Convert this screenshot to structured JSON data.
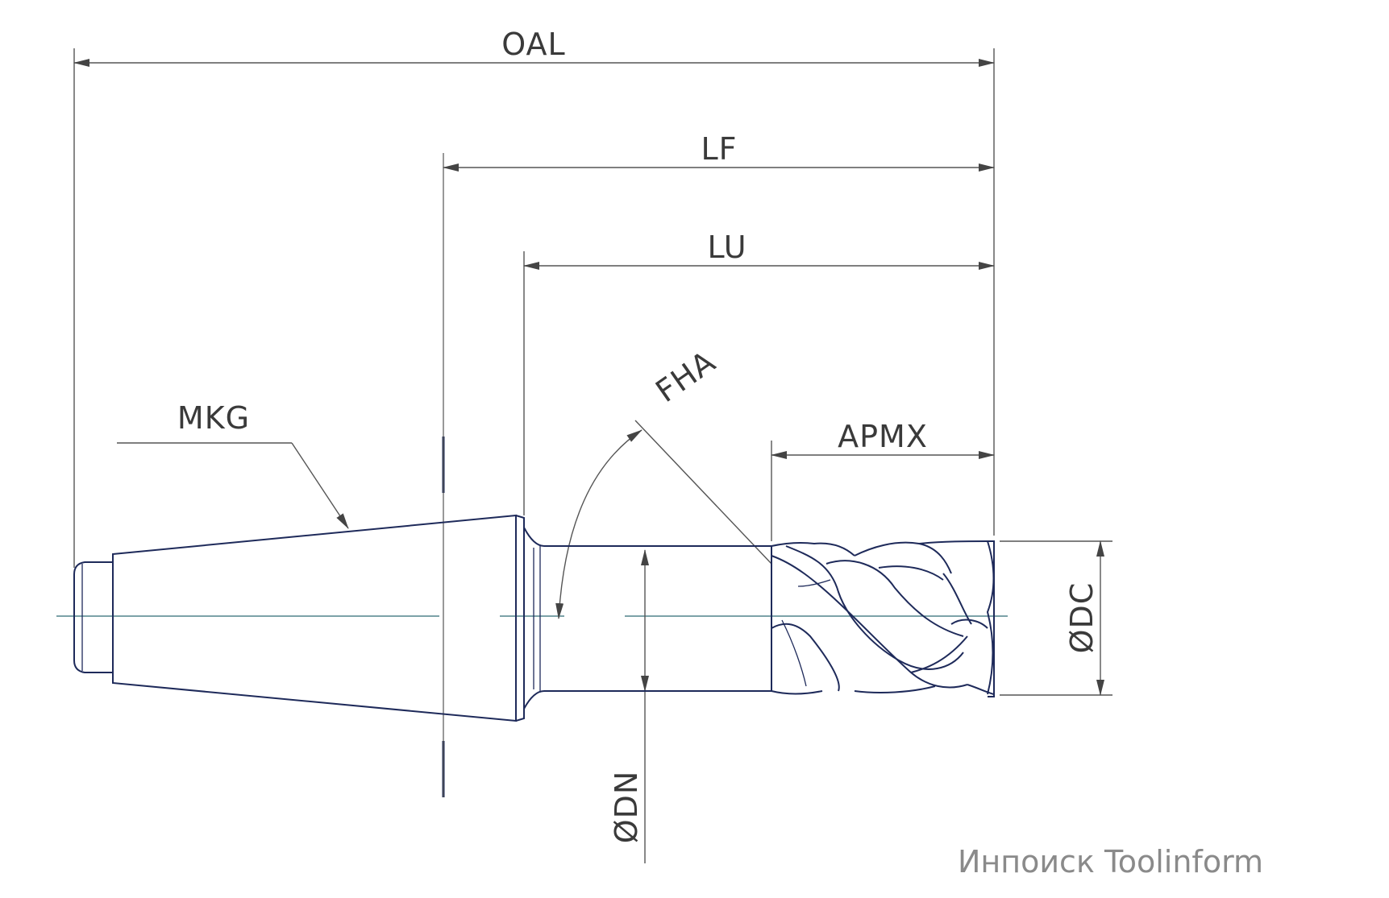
{
  "labels": {
    "oal": "OAL",
    "lf": "LF",
    "lu": "LU",
    "fha": "FHA",
    "mkg": "MKG",
    "apmx": "APMX",
    "dc": "ØDC",
    "dn": "ØDN"
  },
  "watermark": "Инпоиск Toolinform",
  "colors": {
    "outline": "#1e2a5a",
    "dimension": "#555555",
    "axis": "#2f6b75",
    "watermark": "#8a8a8a"
  }
}
